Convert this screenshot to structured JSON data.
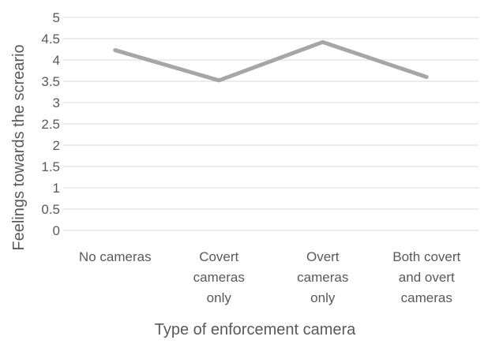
{
  "chart_data": {
    "type": "line",
    "title": "",
    "xlabel": "Type of enforcement camera",
    "ylabel": "Feelings towards the screario",
    "ylim": [
      0,
      5
    ],
    "yticks": [
      "0",
      "0.5",
      "1",
      "1.5",
      "2",
      "2.5",
      "3",
      "3.5",
      "4",
      "4.5",
      "5"
    ],
    "categories": [
      [
        "No cameras"
      ],
      [
        "Covert",
        "cameras",
        "only"
      ],
      [
        "Overt",
        "cameras",
        "only"
      ],
      [
        "Both covert",
        "and overt",
        "cameras"
      ]
    ],
    "series": [
      {
        "values": [
          4.23,
          3.52,
          4.42,
          3.6
        ],
        "color": "#a6a6a6"
      }
    ],
    "grid": true,
    "legend": "none"
  }
}
